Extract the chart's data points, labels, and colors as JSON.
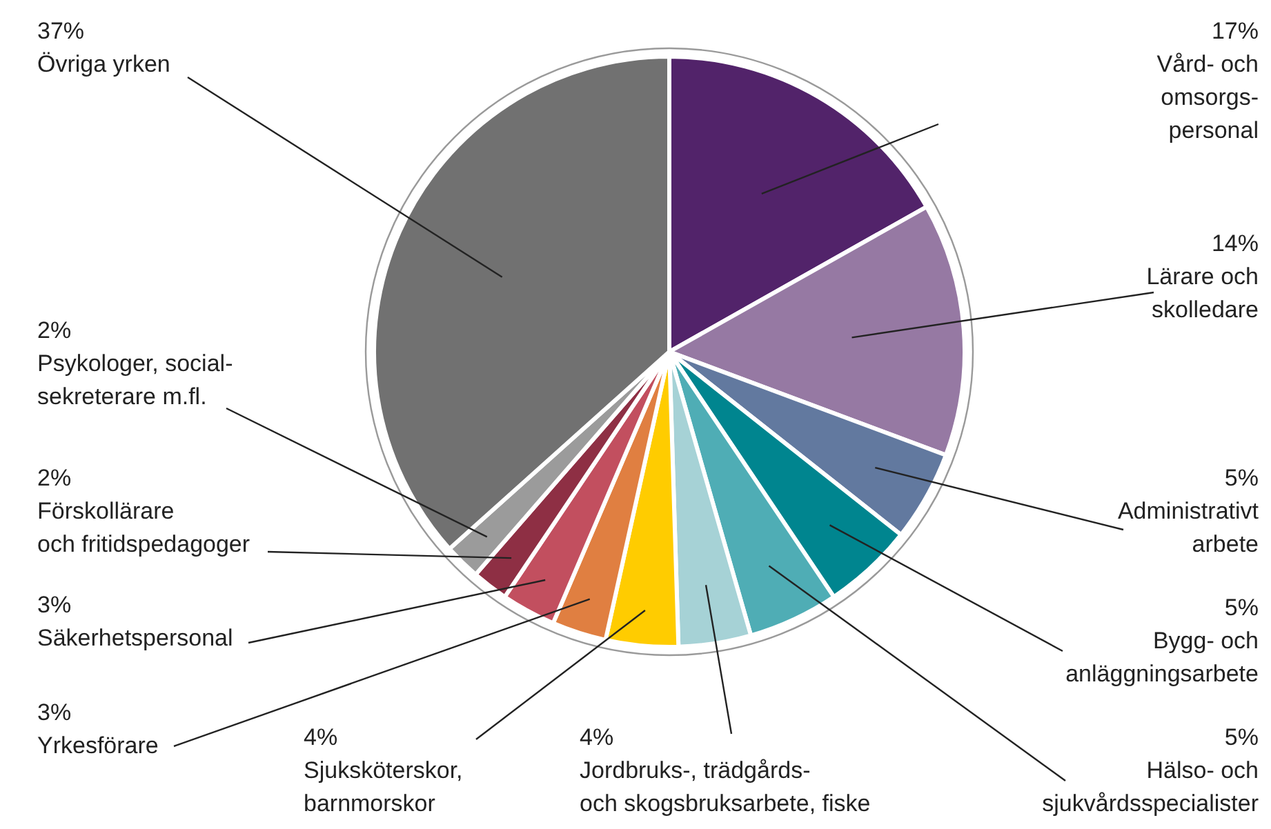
{
  "chart_data": {
    "type": "pie",
    "categories": [
      "Vård- och\nomsorgs-\npersonal",
      "Lärare och\nskolledare",
      "Administrativt\narbete",
      "Bygg- och\nanläggningsarbete",
      "Hälso- och\nsjukvårdsspecialister",
      "Jordbruks-, trädgårds-\noch skogsbruksarbete, fiske",
      "Sjuksköterskor,\nbarnmorskor",
      "Yrkesförare",
      "Säkerhetspersonal",
      "Förskollärare\noch fritidspedagoger",
      "Psykologer, social-\nsekreterare m.fl.",
      "Övriga yrken"
    ],
    "values": [
      17,
      14,
      5,
      5,
      5,
      4,
      4,
      3,
      3,
      2,
      2,
      37
    ],
    "value_labels": [
      "17%",
      "14%",
      "5%",
      "5%",
      "5%",
      "4%",
      "4%",
      "3%",
      "3%",
      "2%",
      "2%",
      "37%"
    ],
    "colors": [
      "#52236a",
      "#9679a3",
      "#62799f",
      "#00858f",
      "#4fadb5",
      "#a6d2d6",
      "#ffcc00",
      "#e07f41",
      "#c24f5f",
      "#8e2f44",
      "#9b9b9b",
      "#717171"
    ]
  }
}
